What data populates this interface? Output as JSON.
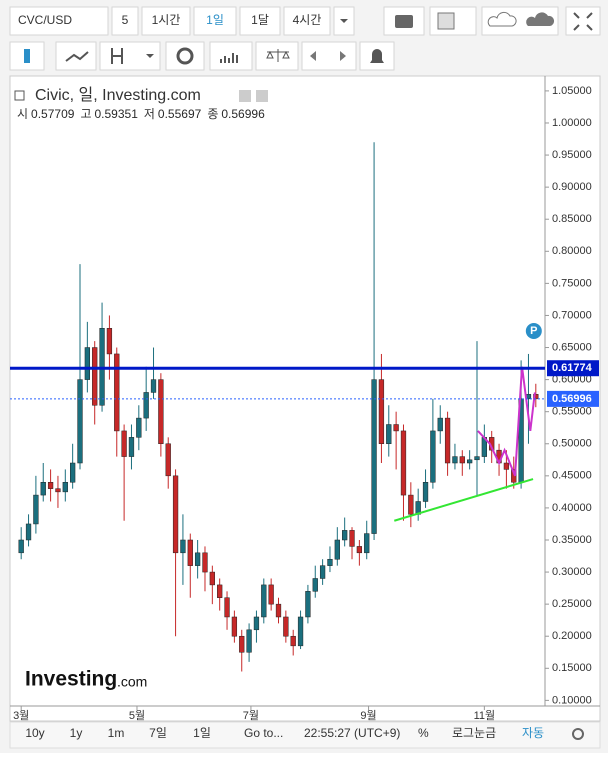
{
  "toolbar": {
    "symbol": "CVC/USD",
    "intervals": [
      "5",
      "1시간",
      "1일",
      "1달",
      "4시간"
    ]
  },
  "bottom_bar": {
    "ranges": [
      "10y",
      "1y",
      "1m",
      "7일",
      "1일"
    ],
    "go_to": "Go to...",
    "time": "22:55:27 (UTC+9)",
    "percent": "%",
    "log": "로그눈금",
    "auto": "자동"
  },
  "chart_data": {
    "type": "candlestick",
    "title": "Civic, 일, Investing.com",
    "ohlc_header": [
      {
        "label": "시",
        "value": 0.57709
      },
      {
        "label": "고",
        "value": 0.59351
      },
      {
        "label": "저",
        "value": 0.55697
      },
      {
        "label": "종",
        "value": 0.56996
      }
    ],
    "x": [
      0,
      4,
      8,
      12,
      16,
      20,
      24,
      28,
      32,
      36,
      40,
      44,
      48,
      52,
      56,
      60,
      64,
      68,
      72,
      76,
      80,
      84,
      88,
      92,
      96,
      100,
      104,
      108,
      112,
      116,
      120,
      124,
      128,
      132,
      136,
      140,
      144,
      148,
      152,
      156,
      160,
      164,
      168,
      172,
      176,
      180,
      184,
      188,
      192,
      196,
      200,
      204,
      208,
      212,
      216,
      220,
      224,
      228,
      232,
      236,
      240,
      244,
      248,
      252,
      256,
      260,
      264,
      268,
      272,
      276,
      280
    ],
    "open": [
      0.33,
      0.35,
      0.375,
      0.42,
      0.44,
      0.43,
      0.425,
      0.44,
      0.47,
      0.6,
      0.65,
      0.56,
      0.68,
      0.64,
      0.52,
      0.48,
      0.51,
      0.54,
      0.58,
      0.6,
      0.5,
      0.45,
      0.33,
      0.35,
      0.31,
      0.33,
      0.3,
      0.28,
      0.26,
      0.23,
      0.2,
      0.175,
      0.21,
      0.23,
      0.28,
      0.25,
      0.23,
      0.2,
      0.185,
      0.23,
      0.27,
      0.29,
      0.31,
      0.32,
      0.35,
      0.365,
      0.34,
      0.33,
      0.36,
      0.6,
      0.5,
      0.53,
      0.52,
      0.42,
      0.39,
      0.41,
      0.44,
      0.52,
      0.54,
      0.47,
      0.48,
      0.47,
      0.475,
      0.48,
      0.51,
      0.49,
      0.47,
      0.46,
      0.44,
      0.57,
      0.57709
    ],
    "high": [
      0.37,
      0.39,
      0.45,
      0.47,
      0.46,
      0.45,
      0.46,
      0.5,
      0.78,
      0.69,
      0.66,
      0.72,
      0.7,
      0.65,
      0.53,
      0.53,
      0.56,
      0.62,
      0.65,
      0.61,
      0.51,
      0.46,
      0.39,
      0.36,
      0.35,
      0.34,
      0.31,
      0.29,
      0.27,
      0.24,
      0.21,
      0.22,
      0.24,
      0.29,
      0.29,
      0.26,
      0.24,
      0.21,
      0.24,
      0.28,
      0.31,
      0.32,
      0.34,
      0.37,
      0.385,
      0.37,
      0.35,
      0.38,
      0.97,
      0.64,
      0.56,
      0.55,
      0.53,
      0.44,
      0.43,
      0.46,
      0.57,
      0.56,
      0.55,
      0.5,
      0.49,
      0.49,
      0.66,
      0.53,
      0.52,
      0.5,
      0.49,
      0.48,
      0.63,
      0.64,
      0.59351
    ],
    "low": [
      0.32,
      0.34,
      0.36,
      0.41,
      0.41,
      0.4,
      0.41,
      0.43,
      0.46,
      0.58,
      0.53,
      0.55,
      0.6,
      0.48,
      0.38,
      0.46,
      0.49,
      0.52,
      0.57,
      0.48,
      0.43,
      0.2,
      0.28,
      0.26,
      0.29,
      0.27,
      0.25,
      0.24,
      0.21,
      0.19,
      0.145,
      0.16,
      0.19,
      0.22,
      0.24,
      0.22,
      0.19,
      0.17,
      0.18,
      0.22,
      0.26,
      0.28,
      0.3,
      0.31,
      0.34,
      0.32,
      0.31,
      0.32,
      0.35,
      0.47,
      0.48,
      0.46,
      0.38,
      0.37,
      0.38,
      0.4,
      0.43,
      0.5,
      0.45,
      0.46,
      0.45,
      0.46,
      0.42,
      0.47,
      0.47,
      0.45,
      0.43,
      0.43,
      0.43,
      0.5,
      0.55697
    ],
    "close": [
      0.35,
      0.375,
      0.42,
      0.44,
      0.43,
      0.425,
      0.44,
      0.47,
      0.6,
      0.65,
      0.56,
      0.68,
      0.64,
      0.52,
      0.48,
      0.51,
      0.54,
      0.58,
      0.6,
      0.5,
      0.45,
      0.33,
      0.35,
      0.31,
      0.33,
      0.3,
      0.28,
      0.26,
      0.23,
      0.2,
      0.175,
      0.21,
      0.23,
      0.28,
      0.25,
      0.23,
      0.2,
      0.185,
      0.23,
      0.27,
      0.29,
      0.31,
      0.32,
      0.35,
      0.365,
      0.34,
      0.33,
      0.36,
      0.6,
      0.5,
      0.53,
      0.52,
      0.42,
      0.39,
      0.41,
      0.44,
      0.52,
      0.54,
      0.47,
      0.48,
      0.47,
      0.475,
      0.48,
      0.51,
      0.49,
      0.47,
      0.46,
      0.44,
      0.57,
      0.57709,
      0.56996
    ],
    "up_color": "#1b6f7e",
    "down_color": "#c62828",
    "xlim": [
      -5,
      285
    ],
    "xticks": [
      {
        "value": 0,
        "label": "3월"
      },
      {
        "value": 63,
        "label": "5월"
      },
      {
        "value": 125,
        "label": "7월"
      },
      {
        "value": 189,
        "label": "9월"
      },
      {
        "value": 252,
        "label": "11월"
      }
    ],
    "ylim": [
      0.085,
      1.067
    ],
    "yticks": [
      {
        "value": 0.1,
        "label": "0.10000"
      },
      {
        "value": 0.15,
        "label": "0.15000"
      },
      {
        "value": 0.2,
        "label": "0.20000"
      },
      {
        "value": 0.25,
        "label": "0.25000"
      },
      {
        "value": 0.3,
        "label": "0.30000"
      },
      {
        "value": 0.35,
        "label": "0.35000"
      },
      {
        "value": 0.4,
        "label": "0.40000"
      },
      {
        "value": 0.45,
        "label": "0.45000"
      },
      {
        "value": 0.5,
        "label": "0.50000"
      },
      {
        "value": 0.55,
        "label": "0.55000"
      },
      {
        "value": 0.6,
        "label": "0.60000"
      },
      {
        "value": 0.65,
        "label": "0.65000"
      },
      {
        "value": 0.7,
        "label": "0.70000"
      },
      {
        "value": 0.75,
        "label": "0.75000"
      },
      {
        "value": 0.8,
        "label": "0.80000"
      },
      {
        "value": 0.85,
        "label": "0.85000"
      },
      {
        "value": 0.9,
        "label": "0.90000"
      },
      {
        "value": 0.95,
        "label": "0.95000"
      },
      {
        "value": 1.0,
        "label": "1.00000"
      },
      {
        "value": 1.05,
        "label": "1.05000"
      }
    ],
    "price_lines": [
      {
        "value": 0.61774,
        "color": "#0018c8",
        "style": "solid"
      },
      {
        "value": 0.56996,
        "color": "#2962ff",
        "style": "dotted"
      }
    ],
    "drawings": [
      {
        "color": "#33e633",
        "x": [
          203,
          278.5
        ],
        "y": [
          0.38,
          0.445
        ]
      },
      {
        "color": "#cc33cc",
        "x": [
          248.5,
          255,
          260,
          263,
          268.7,
          272.5,
          277,
          279.5
        ],
        "y": [
          0.52,
          0.5,
          0.47,
          0.49,
          0.45,
          0.62,
          0.52,
          0.58
        ]
      }
    ],
    "marker": "P",
    "logo": {
      "main": "Investing",
      "suffix": ".com"
    }
  }
}
